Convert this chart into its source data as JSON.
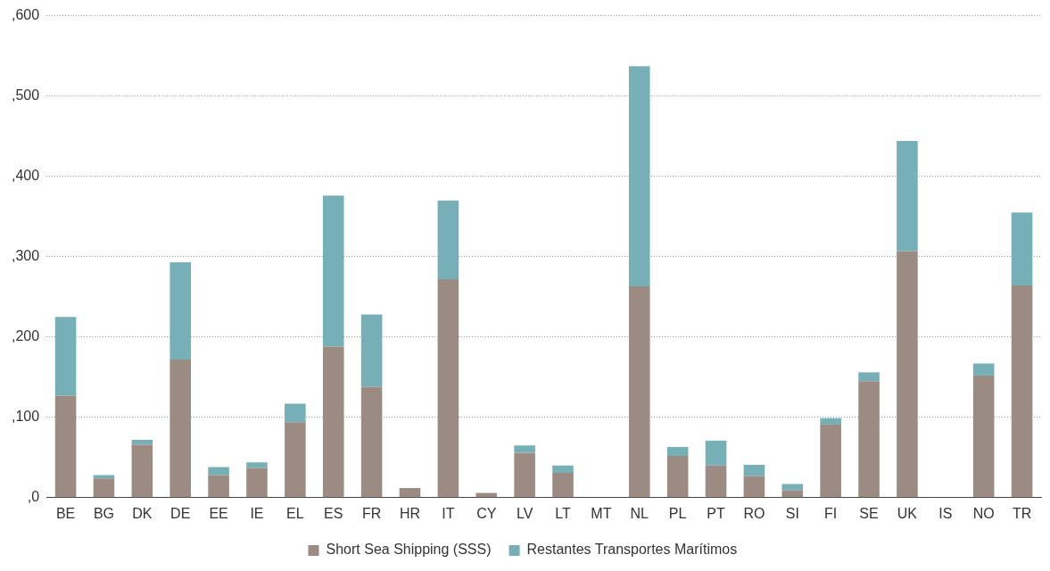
{
  "chart_data": {
    "type": "bar",
    "stacked": true,
    "categories": [
      "BE",
      "BG",
      "DK",
      "DE",
      "EE",
      "IE",
      "EL",
      "ES",
      "FR",
      "HR",
      "IT",
      "CY",
      "LV",
      "LT",
      "MT",
      "NL",
      "PL",
      "PT",
      "RO",
      "SI",
      "FI",
      "SE",
      "UK",
      "IS",
      "NO",
      "TR"
    ],
    "series": [
      {
        "name": "Short Sea Shipping (SSS)",
        "color": "#9c8b82",
        "values": [
          127,
          24,
          66,
          172,
          28,
          37,
          94,
          188,
          138,
          12,
          272,
          6,
          56,
          31,
          0,
          263,
          52,
          40,
          27,
          9,
          91,
          145,
          307,
          0,
          152,
          264
        ]
      },
      {
        "name": "Restantes Transportes Marítimos",
        "color": "#76afb5",
        "values": [
          98,
          4,
          6,
          121,
          10,
          7,
          23,
          188,
          90,
          0,
          98,
          0,
          9,
          9,
          0,
          274,
          11,
          31,
          14,
          8,
          8,
          11,
          137,
          0,
          15,
          91
        ]
      }
    ],
    "ylim": [
      0,
      600
    ],
    "yticks": [
      {
        "value": 0,
        "label": ",0"
      },
      {
        "value": 100,
        "label": ",100"
      },
      {
        "value": 200,
        "label": ",200"
      },
      {
        "value": 300,
        "label": ",300"
      },
      {
        "value": 400,
        "label": ",400"
      },
      {
        "value": 500,
        "label": ",500"
      },
      {
        "value": 600,
        "label": ",600"
      }
    ],
    "grid": "y",
    "legend": "bottom"
  }
}
